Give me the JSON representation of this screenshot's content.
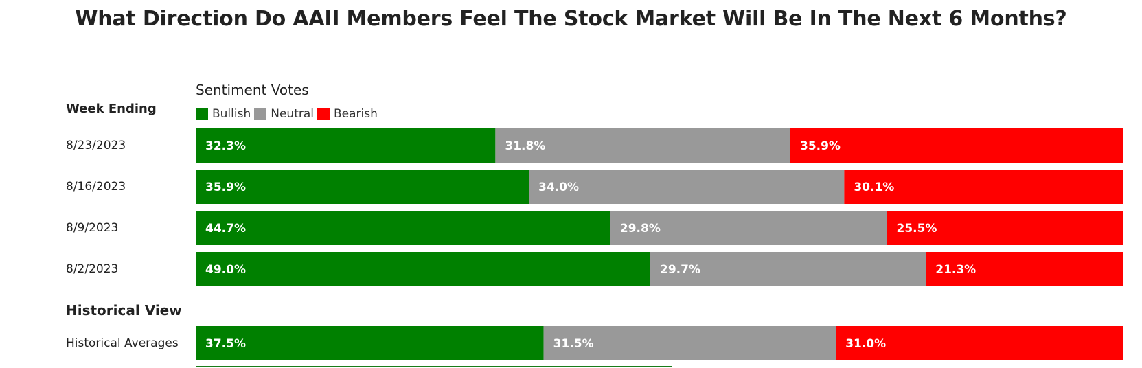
{
  "title": "What Direction Do AAII Members Feel The Stock Market Will Be In The Next 6 Months?",
  "column_header": "Week Ending",
  "chart_data": {
    "type": "bar",
    "orientation": "horizontal",
    "stacked": true,
    "title": "Sentiment Votes",
    "legend": {
      "placement": "top-left",
      "entries": [
        {
          "name": "Bullish",
          "color": "#008000"
        },
        {
          "name": "Neutral",
          "color": "#999999"
        },
        {
          "name": "Bearish",
          "color": "#ff0000"
        }
      ]
    },
    "categories": [
      "8/23/2023",
      "8/16/2023",
      "8/9/2023",
      "8/2/2023"
    ],
    "series": [
      {
        "name": "Bullish",
        "values": [
          32.3,
          35.9,
          44.7,
          49.0
        ],
        "labels": [
          "32.3%",
          "35.9%",
          "44.7%",
          "49.0%"
        ],
        "color": "#008000"
      },
      {
        "name": "Neutral",
        "values": [
          31.8,
          34.0,
          29.8,
          29.7
        ],
        "labels": [
          "31.8%",
          "34.0%",
          "29.8%",
          "29.7%"
        ],
        "color": "#999999"
      },
      {
        "name": "Bearish",
        "values": [
          35.9,
          30.1,
          25.5,
          21.3
        ],
        "labels": [
          "35.9%",
          "30.1%",
          "25.5%",
          "21.3%"
        ],
        "color": "#ff0000"
      }
    ],
    "historical": {
      "section_title": "Historical View",
      "label": "Historical Averages",
      "values": [
        37.5,
        31.5,
        31.0
      ],
      "labels": [
        "37.5%",
        "31.5%",
        "31.0%"
      ]
    }
  }
}
